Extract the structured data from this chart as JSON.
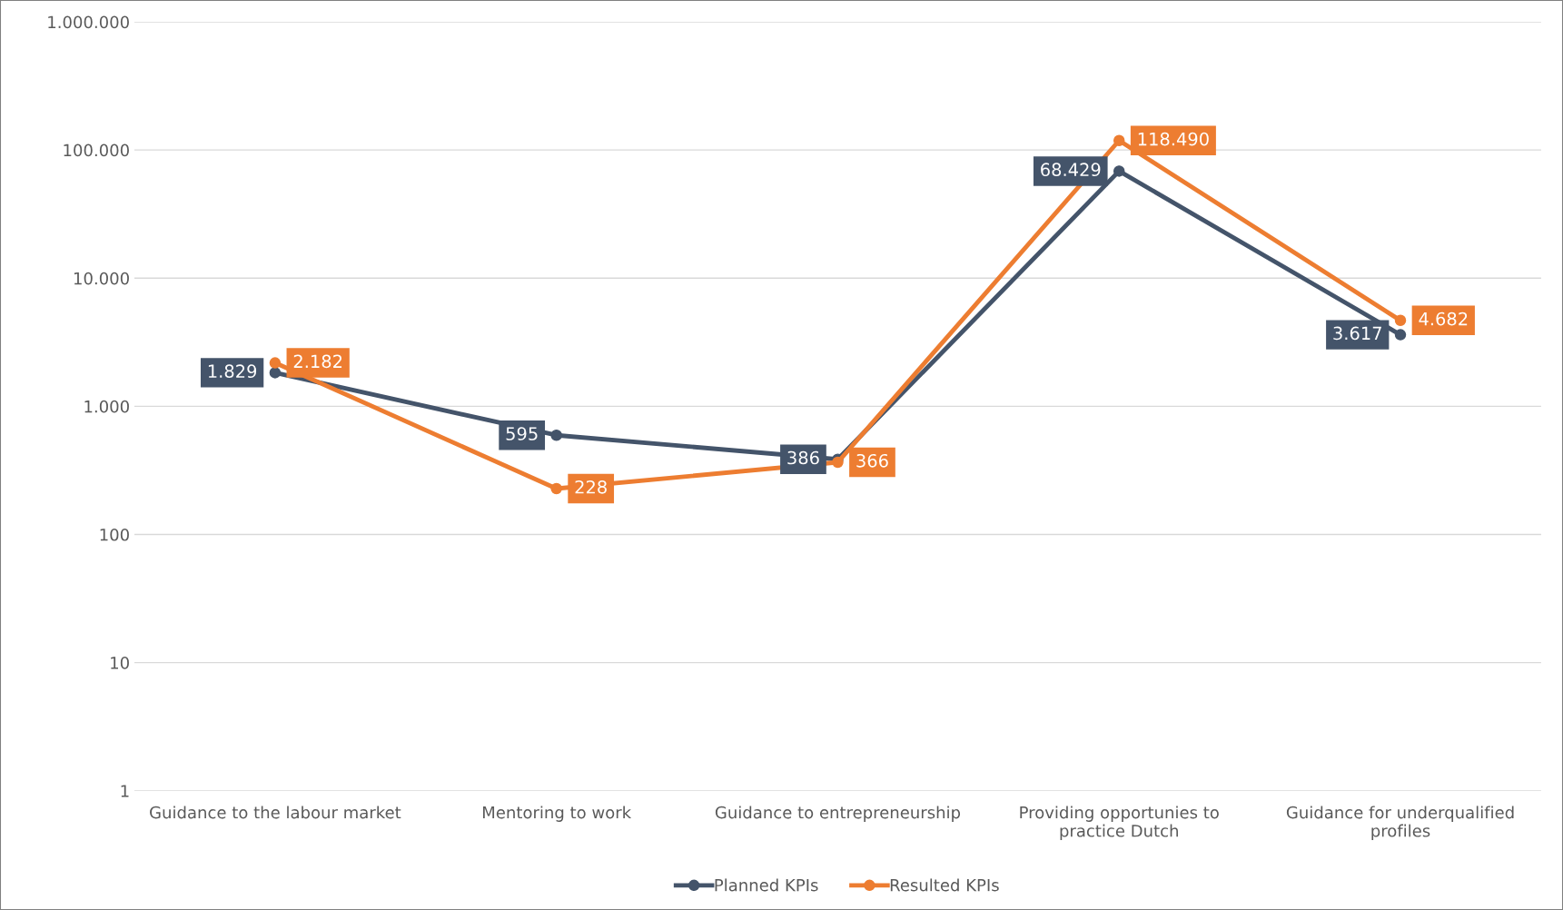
{
  "chart_data": {
    "type": "line",
    "categories": [
      "Guidance to the labour market",
      "Mentoring to work",
      "Guidance to entrepreneurship",
      "Providing opportunies to\npractice Dutch",
      "Guidance for underqualified\nprofiles"
    ],
    "series": [
      {
        "name": "Planned KPIs",
        "color": "#44546a",
        "values": [
          1829,
          595,
          386,
          68429,
          3617
        ],
        "value_labels": [
          "1.829",
          "595",
          "386",
          "68.429",
          "3.617"
        ]
      },
      {
        "name": "Resulted KPIs",
        "color": "#ed7d31",
        "values": [
          2182,
          228,
          366,
          118490,
          4682
        ],
        "value_labels": [
          "2.182",
          "228",
          "366",
          "118.490",
          "4.682"
        ]
      }
    ],
    "log": "y",
    "ylim": [
      1,
      1000000
    ],
    "yticks": [
      {
        "value": 1,
        "label": "1"
      },
      {
        "value": 10,
        "label": "10"
      },
      {
        "value": 100,
        "label": "100"
      },
      {
        "value": 1000,
        "label": "1.000"
      },
      {
        "value": 10000,
        "label": "10.000"
      },
      {
        "value": 100000,
        "label": "100.000"
      },
      {
        "value": 1000000,
        "label": "1.000.000"
      }
    ],
    "grid": "y",
    "legend": "bottom",
    "marker": "circle",
    "line_style": "solid"
  }
}
